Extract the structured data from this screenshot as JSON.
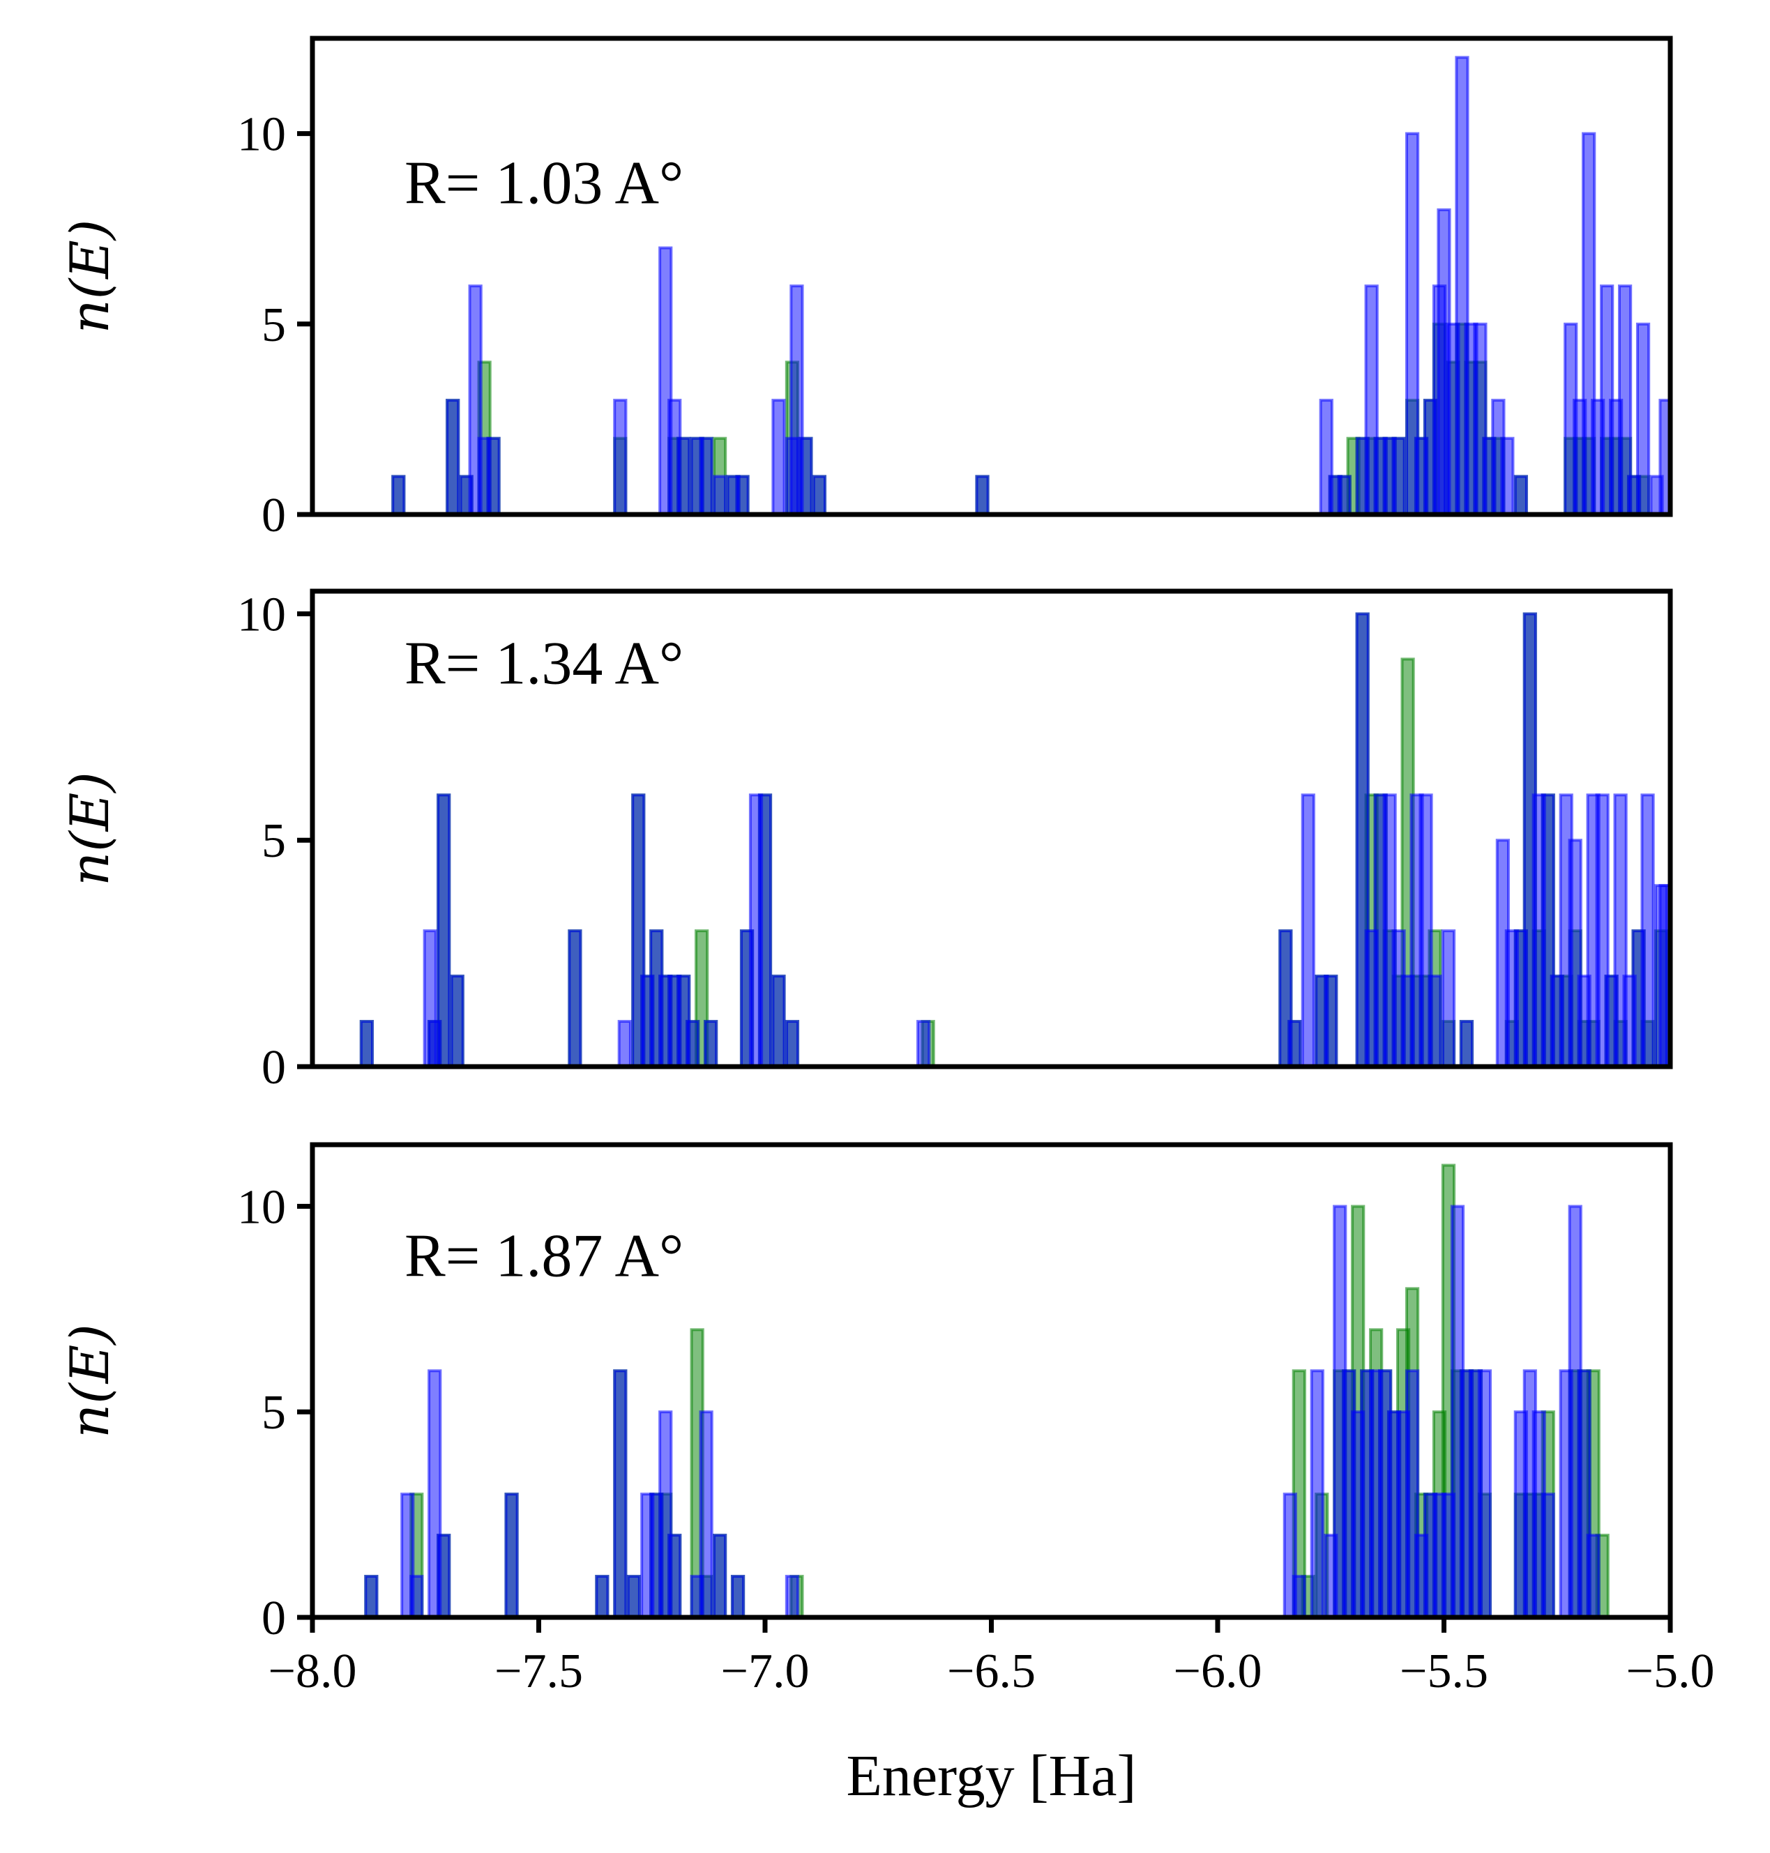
{
  "chart_data": [
    {
      "type": "bar",
      "annotation": "R= 1.03 A°",
      "ylabel": "n(E)",
      "xlim": [
        -8.0,
        -5.0
      ],
      "ylim": [
        0,
        12.5
      ],
      "yticks": [
        0,
        5,
        10
      ],
      "bin_width": 0.025,
      "series": [
        {
          "name": "",
          "color": "#0000ff",
          "x": [
            -7.81,
            -7.69,
            -7.66,
            -7.64,
            -7.62,
            -7.6,
            -7.32,
            -7.22,
            -7.2,
            -7.18,
            -7.15,
            -7.13,
            -7.1,
            -7.07,
            -7.05,
            -6.97,
            -6.94,
            -6.93,
            -6.91,
            -6.88,
            -6.52,
            -5.76,
            -5.74,
            -5.72,
            -5.68,
            -5.66,
            -5.64,
            -5.62,
            -5.6,
            -5.57,
            -5.55,
            -5.53,
            -5.51,
            -5.5,
            -5.48,
            -5.46,
            -5.44,
            -5.42,
            -5.4,
            -5.38,
            -5.36,
            -5.33,
            -5.22,
            -5.2,
            -5.18,
            -5.16,
            -5.14,
            -5.12,
            -5.1,
            -5.08,
            -5.06,
            -5.03,
            -5.01
          ],
          "values": [
            1,
            3,
            1,
            6,
            2,
            2,
            3,
            7,
            3,
            2,
            2,
            2,
            1,
            1,
            1,
            3,
            2,
            6,
            2,
            1,
            1,
            3,
            1,
            1,
            2,
            6,
            2,
            2,
            2,
            10,
            2,
            3,
            6,
            8,
            5,
            12,
            5,
            5,
            2,
            3,
            2,
            1,
            5,
            3,
            10,
            3,
            6,
            3,
            6,
            1,
            5,
            1,
            3
          ]
        },
        {
          "name": "",
          "color": "#008000",
          "x": [
            -7.81,
            -7.69,
            -7.66,
            -7.62,
            -7.6,
            -7.32,
            -7.2,
            -7.18,
            -7.15,
            -7.13,
            -7.1,
            -7.07,
            -7.05,
            -6.94,
            -6.91,
            -6.88,
            -6.52,
            -5.74,
            -5.72,
            -5.7,
            -5.68,
            -5.66,
            -5.64,
            -5.62,
            -5.6,
            -5.57,
            -5.55,
            -5.53,
            -5.51,
            -5.48,
            -5.46,
            -5.44,
            -5.42,
            -5.4,
            -5.38,
            -5.33,
            -5.22,
            -5.2,
            -5.18,
            -5.14,
            -5.12,
            -5.1,
            -5.08,
            -5.06
          ],
          "values": [
            1,
            3,
            1,
            4,
            2,
            2,
            2,
            2,
            2,
            2,
            2,
            1,
            1,
            4,
            2,
            1,
            1,
            1,
            1,
            2,
            2,
            2,
            2,
            2,
            2,
            3,
            2,
            3,
            5,
            4,
            5,
            4,
            4,
            2,
            2,
            1,
            2,
            2,
            2,
            2,
            2,
            2,
            1,
            1
          ]
        }
      ]
    },
    {
      "type": "bar",
      "annotation": "R= 1.34 A°",
      "ylabel": "n(E)",
      "xlim": [
        -8.0,
        -5.0
      ],
      "ylim": [
        0,
        10.5
      ],
      "yticks": [
        0,
        5,
        10
      ],
      "bin_width": 0.025,
      "series": [
        {
          "name": "",
          "color": "#0000ff",
          "x": [
            -7.88,
            -7.74,
            -7.73,
            -7.71,
            -7.68,
            -7.42,
            -7.31,
            -7.28,
            -7.26,
            -7.24,
            -7.22,
            -7.2,
            -7.18,
            -7.16,
            -7.12,
            -7.04,
            -7.02,
            -7.0,
            -6.97,
            -6.94,
            -6.65,
            -5.85,
            -5.83,
            -5.8,
            -5.77,
            -5.75,
            -5.68,
            -5.66,
            -5.64,
            -5.62,
            -5.6,
            -5.58,
            -5.56,
            -5.54,
            -5.52,
            -5.49,
            -5.45,
            -5.37,
            -5.35,
            -5.33,
            -5.31,
            -5.29,
            -5.27,
            -5.25,
            -5.23,
            -5.21,
            -5.19,
            -5.17,
            -5.15,
            -5.13,
            -5.11,
            -5.09,
            -5.07,
            -5.05,
            -5.02,
            -5.01
          ],
          "values": [
            1,
            3,
            1,
            6,
            2,
            3,
            1,
            6,
            2,
            3,
            2,
            2,
            2,
            1,
            1,
            3,
            6,
            6,
            2,
            1,
            1,
            3,
            1,
            6,
            2,
            2,
            10,
            3,
            6,
            6,
            3,
            2,
            6,
            6,
            2,
            3,
            1,
            5,
            3,
            3,
            10,
            6,
            6,
            2,
            6,
            5,
            2,
            6,
            6,
            2,
            6,
            2,
            3,
            6,
            4,
            4
          ]
        },
        {
          "name": "",
          "color": "#008000",
          "x": [
            -7.88,
            -7.73,
            -7.71,
            -7.68,
            -7.42,
            -7.28,
            -7.26,
            -7.24,
            -7.22,
            -7.2,
            -7.18,
            -7.16,
            -7.14,
            -7.12,
            -7.04,
            -7.0,
            -6.97,
            -6.94,
            -6.64,
            -5.85,
            -5.83,
            -5.77,
            -5.75,
            -5.68,
            -5.66,
            -5.64,
            -5.62,
            -5.6,
            -5.58,
            -5.56,
            -5.54,
            -5.52,
            -5.49,
            -5.45,
            -5.35,
            -5.33,
            -5.31,
            -5.29,
            -5.27,
            -5.25,
            -5.23,
            -5.21,
            -5.19,
            -5.17,
            -5.13,
            -5.11,
            -5.07,
            -5.05,
            -5.02
          ],
          "values": [
            1,
            1,
            6,
            2,
            3,
            6,
            2,
            3,
            2,
            2,
            2,
            1,
            3,
            1,
            3,
            6,
            2,
            1,
            1,
            3,
            1,
            2,
            2,
            10,
            6,
            6,
            3,
            2,
            9,
            2,
            2,
            3,
            1,
            1,
            1,
            3,
            10,
            3,
            6,
            2,
            2,
            3,
            1,
            1,
            2,
            1,
            3,
            1,
            3
          ]
        }
      ]
    },
    {
      "type": "bar",
      "annotation": "R= 1.87 A°",
      "ylabel": "n(E)",
      "xlim": [
        -8.0,
        -5.0
      ],
      "ylim": [
        0,
        11.5
      ],
      "yticks": [
        0,
        5,
        10
      ],
      "bin_width": 0.025,
      "series": [
        {
          "name": "",
          "color": "#0000ff",
          "x": [
            -7.87,
            -7.79,
            -7.77,
            -7.73,
            -7.71,
            -7.56,
            -7.36,
            -7.32,
            -7.29,
            -7.26,
            -7.24,
            -7.22,
            -7.2,
            -7.15,
            -7.13,
            -7.1,
            -7.06,
            -6.94,
            -5.84,
            -5.82,
            -5.78,
            -5.75,
            -5.73,
            -5.71,
            -5.69,
            -5.67,
            -5.65,
            -5.63,
            -5.61,
            -5.59,
            -5.57,
            -5.55,
            -5.53,
            -5.51,
            -5.49,
            -5.47,
            -5.45,
            -5.43,
            -5.41,
            -5.33,
            -5.31,
            -5.29,
            -5.27,
            -5.23,
            -5.21,
            -5.19,
            -5.17
          ],
          "values": [
            1,
            3,
            1,
            6,
            2,
            3,
            1,
            6,
            1,
            3,
            3,
            5,
            2,
            1,
            5,
            2,
            1,
            1,
            3,
            1,
            6,
            2,
            10,
            6,
            5,
            6,
            6,
            6,
            5,
            5,
            6,
            2,
            3,
            3,
            3,
            10,
            6,
            6,
            6,
            5,
            6,
            5,
            3,
            6,
            10,
            6,
            2
          ]
        },
        {
          "name": "",
          "color": "#008000",
          "x": [
            -7.87,
            -7.77,
            -7.71,
            -7.56,
            -7.36,
            -7.32,
            -7.29,
            -7.24,
            -7.22,
            -7.2,
            -7.15,
            -7.13,
            -7.1,
            -7.06,
            -6.93,
            -5.82,
            -5.8,
            -5.77,
            -5.73,
            -5.71,
            -5.69,
            -5.67,
            -5.65,
            -5.63,
            -5.61,
            -5.59,
            -5.57,
            -5.55,
            -5.53,
            -5.51,
            -5.49,
            -5.47,
            -5.45,
            -5.43,
            -5.41,
            -5.33,
            -5.31,
            -5.29,
            -5.27,
            -5.21,
            -5.19,
            -5.17,
            -5.15
          ],
          "values": [
            1,
            3,
            2,
            3,
            1,
            6,
            1,
            3,
            3,
            2,
            7,
            1,
            2,
            1,
            1,
            6,
            1,
            3,
            6,
            6,
            10,
            6,
            7,
            6,
            5,
            7,
            8,
            3,
            3,
            5,
            11,
            6,
            6,
            6,
            3,
            3,
            3,
            3,
            5,
            6,
            6,
            6,
            2
          ]
        }
      ]
    }
  ],
  "xticks": [
    -8.0,
    -7.5,
    -7.0,
    -6.5,
    -6.0,
    -5.5,
    -5.0
  ],
  "xtick_labels": [
    "−8.0",
    "−7.5",
    "−7.0",
    "−6.5",
    "−6.0",
    "−5.5",
    "−5.0"
  ],
  "ytick_labels": [
    "0",
    "5",
    "10"
  ],
  "xlabel": "Energy [Ha]"
}
